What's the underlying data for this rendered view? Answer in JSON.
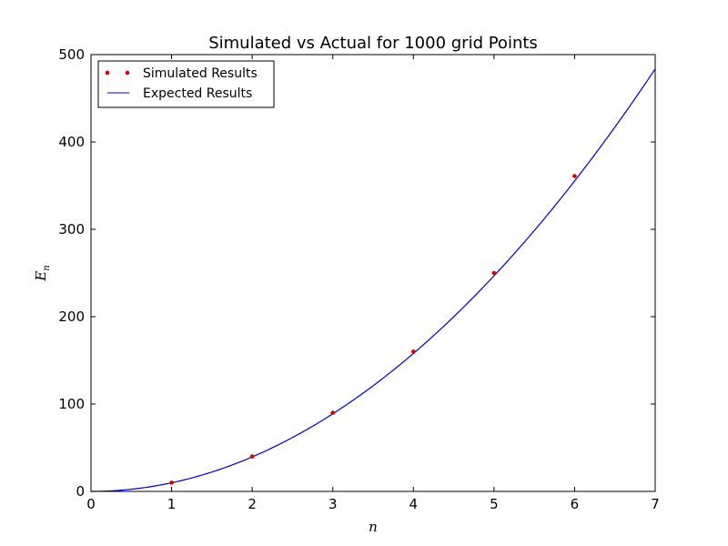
{
  "chart_data": {
    "type": "scatter",
    "title": "Simulated vs Actual for 1000 grid Points",
    "xlabel": "n",
    "ylabel": "E",
    "ylabel_subscript": "n",
    "xlim": [
      0,
      7
    ],
    "ylim": [
      0,
      500
    ],
    "x_ticks": [
      0,
      1,
      2,
      3,
      4,
      5,
      6,
      7
    ],
    "y_ticks": [
      0,
      100,
      200,
      300,
      400,
      500
    ],
    "grid": false,
    "legend_position": "top-left",
    "series": [
      {
        "name": "Simulated Results",
        "type": "scatter",
        "color": "#d40000",
        "x": [
          1,
          2,
          3,
          4,
          5,
          6
        ],
        "y": [
          10,
          40,
          90,
          160,
          250,
          361
        ]
      },
      {
        "name": "Expected Results",
        "type": "line",
        "color": "#0000cc",
        "function": "9.87*x^2",
        "x_range": [
          0,
          7
        ]
      }
    ]
  }
}
